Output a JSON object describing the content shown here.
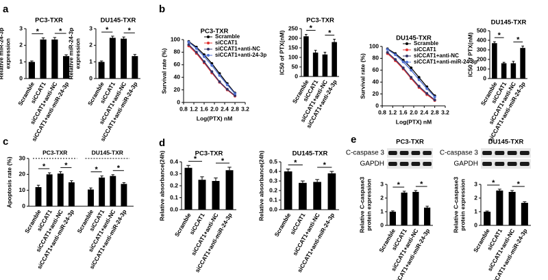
{
  "chart_data": [
    {
      "type": "bar",
      "panel": "a",
      "title": "PC3-TXR",
      "y_label": [
        "Relative miR-24-3p",
        "expression"
      ],
      "categories": [
        "Scramble",
        "siCCAT1",
        "siCCAT1+anti-NC",
        "siCCAT1+anti-miR-24-3p"
      ],
      "values": [
        1.0,
        2.35,
        2.35,
        1.35
      ],
      "errors": [
        0.06,
        0.1,
        0.12,
        0.08
      ],
      "color": "#000000",
      "ylim": [
        0,
        3
      ],
      "yticks": [
        0,
        1,
        2,
        3
      ],
      "annotations": [
        "*",
        "*"
      ]
    },
    {
      "type": "bar",
      "title": "DU145-TXR",
      "y_label": [
        "Relative miR-24-3p",
        "expression"
      ],
      "categories": [
        "Scramble",
        "siCCAT1",
        "siCCAT1+anti-NC",
        "siCCAT1+anti-miR-24-3p"
      ],
      "values": [
        1.0,
        2.45,
        2.4,
        1.35
      ],
      "errors": [
        0.06,
        0.1,
        0.1,
        0.1
      ],
      "color": "#000000",
      "ylim": [
        0,
        3
      ],
      "yticks": [
        0,
        1,
        2,
        3
      ],
      "annotations": [
        "*",
        "*"
      ]
    },
    {
      "type": "line",
      "panel": "b",
      "title": "PC3-TXR",
      "y_label": "Survival rate (%)",
      "x_label": "Log(PTX) nM",
      "x": [
        1.0,
        1.3,
        1.6,
        1.9,
        2.2,
        2.5,
        2.8
      ],
      "series": [
        {
          "name": "Scramble",
          "color": "#000000",
          "values": [
            97,
            88,
            76,
            62,
            46,
            30,
            15
          ]
        },
        {
          "name": "siCCAT1",
          "color": "#e0302f",
          "values": [
            90,
            78,
            63,
            47,
            32,
            20,
            10
          ]
        },
        {
          "name": "siCCAT1+anti-NC",
          "color": "#333366",
          "values": [
            92,
            80,
            65,
            49,
            33,
            21,
            11
          ]
        },
        {
          "name": "siCCAT1+anti-24-3p",
          "color": "#4f6fd0",
          "values": [
            96,
            86,
            73,
            59,
            43,
            28,
            14
          ]
        }
      ],
      "xlim": [
        0.8,
        3.2
      ],
      "xticks": [
        0.8,
        1.2,
        1.6,
        {
          "value": 2,
          "label": "2.0"
        },
        2.4,
        2.8,
        3.2
      ],
      "ylim": [
        0,
        100
      ],
      "yticks": [
        0,
        20,
        40,
        60,
        80,
        100
      ],
      "legend": "upper right"
    },
    {
      "type": "bar",
      "title": "PC3-TXR",
      "y_label": "IC50 of PTX(nM)",
      "categories": [
        "Scramble",
        "siCCAT1",
        "siCCAT1+anti-NC",
        "siCCAT1+anti-24-3p"
      ],
      "values": [
        210,
        125,
        115,
        180
      ],
      "errors": [
        10,
        12,
        12,
        15
      ],
      "color": "#000000",
      "ylim": [
        0,
        250
      ],
      "yticks": [
        0,
        50,
        100,
        150,
        200,
        250
      ],
      "annotations": [
        "*",
        "*"
      ]
    },
    {
      "type": "line",
      "title": "DU145-TXR",
      "y_label": "Survival rate (%)",
      "x_label": "Log(PTX) nM",
      "x": [
        1.0,
        1.3,
        1.6,
        1.9,
        2.2,
        2.5,
        2.8
      ],
      "series": [
        {
          "name": "Scramble",
          "color": "#000000",
          "values": [
            96,
            88,
            77,
            64,
            48,
            32,
            17
          ]
        },
        {
          "name": "siCCAT1",
          "color": "#e0302f",
          "values": [
            88,
            76,
            62,
            46,
            31,
            19,
            9
          ]
        },
        {
          "name": "siCCAT1+anti-NC",
          "color": "#333366",
          "values": [
            90,
            78,
            64,
            48,
            33,
            21,
            10
          ]
        },
        {
          "name": "siCCAT1+anti-miR-24-3p",
          "color": "#4f6fd0",
          "values": [
            95,
            86,
            74,
            60,
            44,
            29,
            15
          ]
        }
      ],
      "xlim": [
        0.8,
        3.2
      ],
      "xticks": [
        0.8,
        1.2,
        1.6,
        {
          "value": 2,
          "label": "2.0"
        },
        2.4,
        2.8,
        3.2
      ],
      "ylim": [
        0,
        100
      ],
      "yticks": [
        0,
        20,
        40,
        60,
        80,
        100
      ],
      "legend": "upper right"
    },
    {
      "type": "bar",
      "title": "DU145-TXR",
      "y_label": "IC50 of PTX(nM)",
      "categories": [
        "Scramble",
        "siCCAT1",
        "siCCAT1+anti-NC",
        "siCCAT1+anti-miR-24-3p"
      ],
      "values": [
        370,
        160,
        160,
        320
      ],
      "errors": [
        15,
        10,
        20,
        20
      ],
      "color": "#000000",
      "ylim": [
        0,
        500
      ],
      "yticks": [
        0,
        100,
        200,
        300,
        400,
        500
      ],
      "annotations": [
        "*",
        "*"
      ]
    },
    {
      "type": "grouped_bar",
      "panel": "c",
      "y_label": "Apoptosis rate (%)",
      "categories": [
        "Scramble",
        "siCCAT1",
        "siCCAT1+anti-NC",
        "siCCAT1+anti-miR-24-3p"
      ],
      "series": [
        {
          "name": "PC3-TXR",
          "values": [
            12,
            20,
            20.5,
            15
          ],
          "errors": [
            1.2,
            1,
            1.2,
            1
          ],
          "annotations": [
            "*",
            "*"
          ]
        },
        {
          "name": "DU145-TXR",
          "values": [
            10.5,
            18,
            19,
            14
          ],
          "errors": [
            1,
            1,
            0.8,
            0.8
          ],
          "annotations": [
            "*",
            "*"
          ]
        }
      ],
      "color": "#000000",
      "ylim": [
        0,
        30
      ],
      "yticks": [
        0,
        10,
        20,
        30
      ]
    },
    {
      "type": "bar",
      "panel": "d",
      "title": "PC3-TXR",
      "y_label": "Relative absorbance(24h)",
      "categories": [
        "Scramble",
        "siCCAT1",
        "siCCAT1+anti-NC",
        "siCCAT1+anti-miR-24-3p"
      ],
      "values": [
        0.35,
        0.25,
        0.24,
        0.33
      ],
      "errors": [
        0.02,
        0.025,
        0.025,
        0.025
      ],
      "color": "#000000",
      "ylim": [
        0,
        0.4
      ],
      "yticks": [
        {
          "value": 0,
          "label": "0.0"
        },
        0.1,
        0.2,
        0.3,
        0.4
      ],
      "annotations": [
        "*",
        "*"
      ]
    },
    {
      "type": "bar",
      "title": "DU145-TXR",
      "y_label": "Relative absorbance(24h)",
      "categories": [
        "Scramble",
        "siCCAT1",
        "siCCAT1+anti-NC",
        "siCCAT1+anti-miR-24-3p"
      ],
      "values": [
        0.4,
        0.28,
        0.29,
        0.38
      ],
      "errors": [
        0.025,
        0.02,
        0.025,
        0.02
      ],
      "color": "#000000",
      "ylim": [
        0,
        0.5
      ],
      "yticks": [
        {
          "value": 0,
          "label": "0.0"
        },
        0.1,
        0.2,
        0.3,
        0.4,
        0.5
      ],
      "annotations": [
        "*",
        "*"
      ]
    },
    {
      "type": "bar",
      "panel": "e",
      "title": "PC3-TXR",
      "blot_labels": [
        "C-caspase 3",
        "GAPDH"
      ],
      "y_label": [
        "Relative C-caspase3",
        "protein expression"
      ],
      "categories": [
        "Scramble",
        "siCCAT1",
        "siCCAT1+anti-NC",
        "siCCAT1+anti-miR-24-3p"
      ],
      "values": [
        1.0,
        2.4,
        2.45,
        1.3
      ],
      "errors": [
        0.06,
        0.1,
        0.1,
        0.1
      ],
      "color": "#000000",
      "ylim": [
        0,
        3
      ],
      "yticks": [
        0,
        1,
        2,
        3
      ],
      "annotations": [
        "*",
        "*"
      ]
    },
    {
      "type": "bar",
      "title": "DU145-TXR",
      "blot_labels": [
        "C-caspase 3",
        "GAPDH"
      ],
      "y_label": [
        "Relative C-caspase3",
        "protein expression"
      ],
      "categories": [
        "Scramble",
        "siCCAT1",
        "siCCAT1+anti-NC",
        "siCCAT1+anti-miR-24-3p"
      ],
      "values": [
        1.0,
        2.55,
        2.45,
        1.65
      ],
      "errors": [
        0.05,
        0.1,
        0.1,
        0.08
      ],
      "color": "#000000",
      "ylim": [
        0,
        3
      ],
      "yticks": [
        0,
        1,
        2,
        3
      ],
      "annotations": [
        "*",
        "*"
      ]
    }
  ]
}
